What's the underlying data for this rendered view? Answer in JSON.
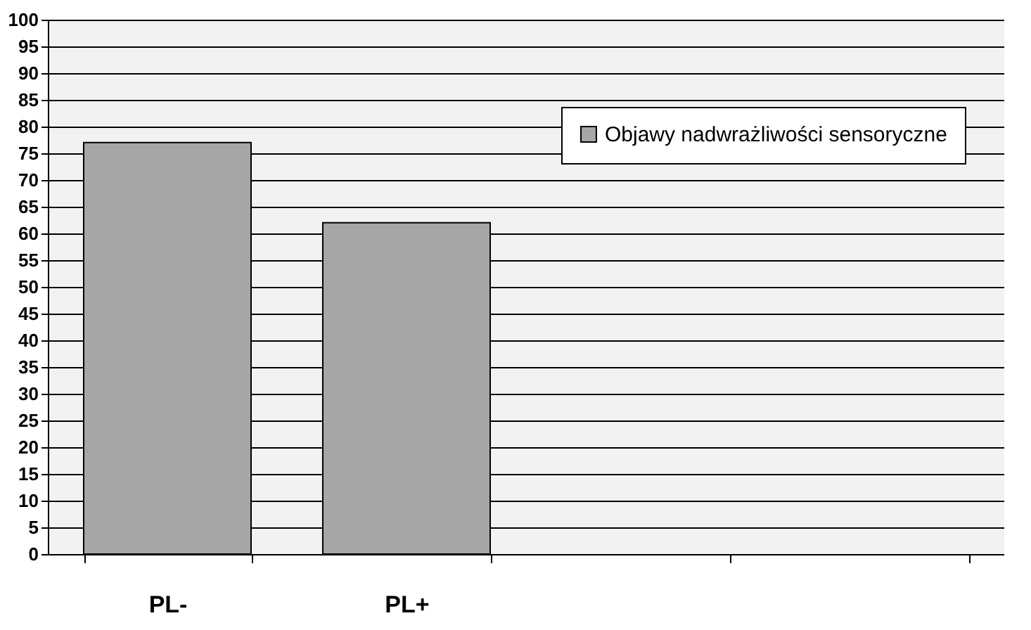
{
  "chart_data": {
    "type": "bar",
    "categories": [
      "PL-",
      "PL+",
      null,
      null
    ],
    "series": [
      {
        "name": "Objawy nadwrażliwości sensoryczne",
        "color": "#a6a6a6",
        "values": [
          77,
          62,
          null,
          null
        ]
      }
    ],
    "ylim": [
      0,
      100
    ],
    "yticks": [
      0,
      5,
      10,
      15,
      20,
      25,
      30,
      35,
      40,
      45,
      50,
      55,
      60,
      65,
      70,
      75,
      80,
      85,
      90,
      95,
      100
    ],
    "grid": "y",
    "legend": "top right"
  }
}
